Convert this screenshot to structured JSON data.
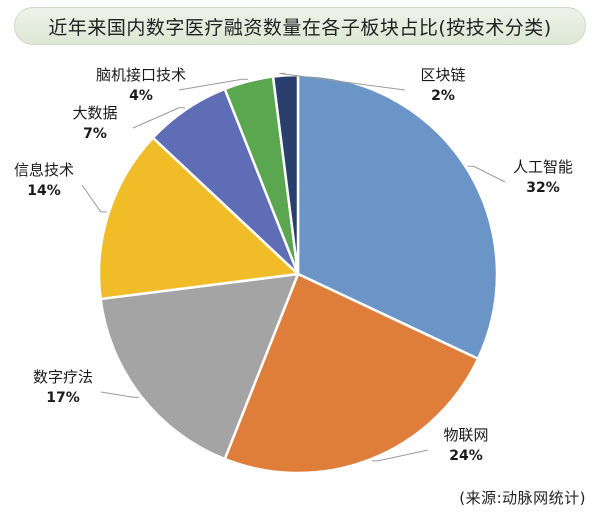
{
  "title": "近年来国内数字医疗融资数量在各子板块占比(按技术分类)",
  "source": "(来源:动脉网统计)",
  "chart_data": {
    "type": "pie",
    "title": "近年来国内数字医疗融资数量在各子板块占比(按技术分类)",
    "slices": [
      {
        "label": "人工智能",
        "value": 32,
        "value_label": "32%",
        "color": "#6b95c7"
      },
      {
        "label": "物联网",
        "value": 24,
        "value_label": "24%",
        "color": "#df7d3b"
      },
      {
        "label": "数字疗法",
        "value": 17,
        "value_label": "17%",
        "color": "#a4a4a4"
      },
      {
        "label": "信息技术",
        "value": 14,
        "value_label": "14%",
        "color": "#f0bd29"
      },
      {
        "label": "大数据",
        "value": 7,
        "value_label": "7%",
        "color": "#5f6cb6"
      },
      {
        "label": "脑机接口技术",
        "value": 4,
        "value_label": "4%",
        "color": "#5aa74f"
      },
      {
        "label": "区块链",
        "value": 2,
        "value_label": "2%",
        "color": "#2a3f6b"
      }
    ],
    "start": "12 o'clock",
    "direction": "clockwise"
  }
}
